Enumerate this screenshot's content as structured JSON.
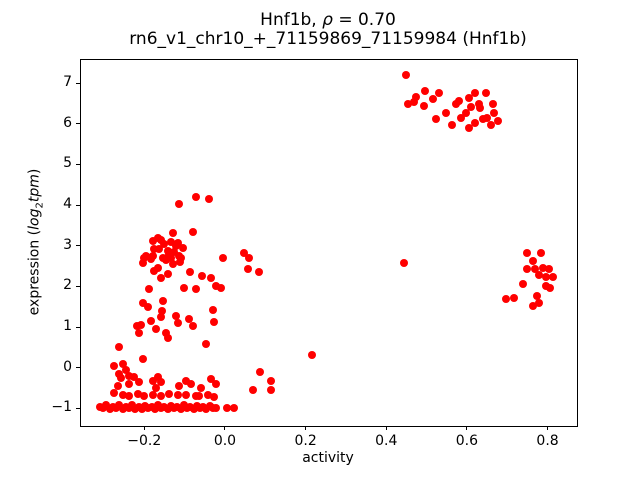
{
  "title": {
    "line1_prefix": "Hnf1b, ",
    "line1_rho": "ρ",
    "line1_suffix": " = 0.70",
    "line2": "rn6_v1_chr10_+_71159869_71159984 (Hnf1b)"
  },
  "chart_data": {
    "type": "scatter",
    "title_line1": "Hnf1b, ρ = 0.70",
    "title_line2": "rn6_v1_chr10_+_71159869_71159984 (Hnf1b)",
    "xlabel": "activity",
    "ylabel_parts": {
      "prefix": "expression (",
      "log": "log",
      "sub": "2",
      "tpm": "tpm",
      "suffix": ")"
    },
    "marker_color": "#ff0000",
    "marker_px": 8,
    "axes_color": "#000000",
    "background_color": "#ffffff",
    "grid": false,
    "legend": "none",
    "xlim": [
      -0.357,
      0.873
    ],
    "ylim": [
      -1.435,
      7.57
    ],
    "xticks": [
      -0.2,
      0.0,
      0.2,
      0.4,
      0.6,
      0.8
    ],
    "xtick_labels": [
      "−0.2",
      "0.0",
      "0.2",
      "0.4",
      "0.6",
      "0.8"
    ],
    "yticks": [
      -1,
      0,
      1,
      2,
      3,
      4,
      5,
      6,
      7
    ],
    "ytick_labels": [
      "−1",
      "0",
      "1",
      "2",
      "3",
      "4",
      "5",
      "6",
      "7"
    ],
    "points": [
      [
        0.449,
        7.2
      ],
      [
        0.474,
        6.66
      ],
      [
        0.496,
        6.8
      ],
      [
        0.515,
        6.6
      ],
      [
        0.531,
        6.76
      ],
      [
        0.454,
        6.48
      ],
      [
        0.469,
        6.54
      ],
      [
        0.494,
        6.43
      ],
      [
        0.523,
        6.11
      ],
      [
        0.548,
        6.27
      ],
      [
        0.564,
        5.98
      ],
      [
        0.573,
        6.48
      ],
      [
        0.581,
        6.56
      ],
      [
        0.585,
        6.15
      ],
      [
        0.597,
        6.27
      ],
      [
        0.606,
        6.64
      ],
      [
        0.61,
        6.41
      ],
      [
        0.606,
        5.9
      ],
      [
        0.62,
        6.02
      ],
      [
        0.62,
        6.76
      ],
      [
        0.633,
        6.39
      ],
      [
        0.639,
        6.11
      ],
      [
        0.647,
        6.76
      ],
      [
        0.651,
        6.15
      ],
      [
        0.659,
        5.98
      ],
      [
        0.668,
        6.27
      ],
      [
        0.63,
        6.48
      ],
      [
        0.664,
        6.48
      ],
      [
        0.676,
        6.07
      ],
      [
        0.75,
        2.83
      ],
      [
        0.783,
        2.82
      ],
      [
        0.765,
        2.63
      ],
      [
        0.75,
        2.42
      ],
      [
        0.77,
        2.42
      ],
      [
        0.788,
        2.46
      ],
      [
        0.804,
        2.42
      ],
      [
        0.779,
        2.27
      ],
      [
        0.797,
        2.22
      ],
      [
        0.814,
        2.22
      ],
      [
        0.738,
        2.05
      ],
      [
        0.796,
        2.01
      ],
      [
        0.806,
        1.97
      ],
      [
        0.717,
        1.72
      ],
      [
        0.697,
        1.69
      ],
      [
        0.775,
        1.77
      ],
      [
        0.779,
        1.6
      ],
      [
        0.763,
        1.52
      ],
      [
        0.444,
        2.57
      ],
      [
        0.217,
        0.31
      ],
      [
        -0.115,
        4.02
      ],
      [
        -0.072,
        4.21
      ],
      [
        -0.04,
        4.16
      ],
      [
        -0.13,
        3.32
      ],
      [
        -0.08,
        3.34
      ],
      [
        -0.167,
        3.2
      ],
      [
        -0.179,
        3.12
      ],
      [
        -0.159,
        3.14
      ],
      [
        -0.134,
        3.09
      ],
      [
        -0.116,
        3.06
      ],
      [
        -0.15,
        3.04
      ],
      [
        -0.121,
        2.99
      ],
      [
        -0.105,
        2.95
      ],
      [
        -0.175,
        2.91
      ],
      [
        -0.163,
        2.91
      ],
      [
        -0.142,
        2.87
      ],
      [
        -0.126,
        2.85
      ],
      [
        -0.196,
        2.75
      ],
      [
        -0.179,
        2.75
      ],
      [
        -0.138,
        2.79
      ],
      [
        -0.113,
        2.75
      ],
      [
        -0.2,
        2.71
      ],
      [
        -0.154,
        2.71
      ],
      [
        -0.134,
        2.71
      ],
      [
        -0.109,
        2.71
      ],
      [
        -0.204,
        2.58
      ],
      [
        -0.183,
        2.67
      ],
      [
        -0.146,
        2.65
      ],
      [
        -0.006,
        2.69
      ],
      [
        -0.175,
        2.39
      ],
      [
        -0.167,
        2.46
      ],
      [
        -0.142,
        2.31
      ],
      [
        -0.128,
        2.55
      ],
      [
        -0.112,
        2.61
      ],
      [
        -0.086,
        2.36
      ],
      [
        -0.057,
        2.25
      ],
      [
        -0.035,
        2.21
      ],
      [
        -0.159,
        2.21
      ],
      [
        0.048,
        2.83
      ],
      [
        0.06,
        2.71
      ],
      [
        0.056,
        2.43
      ],
      [
        0.085,
        2.35
      ],
      [
        -0.101,
        1.97
      ],
      [
        -0.072,
        1.93
      ],
      [
        -0.188,
        1.93
      ],
      [
        -0.022,
        2.01
      ],
      [
        -0.01,
        1.97
      ],
      [
        -0.204,
        1.6
      ],
      [
        -0.154,
        1.65
      ],
      [
        -0.157,
        1.4
      ],
      [
        -0.192,
        1.49
      ],
      [
        -0.159,
        1.24
      ],
      [
        -0.121,
        1.28
      ],
      [
        -0.088,
        1.2
      ],
      [
        -0.03,
        1.41
      ],
      [
        -0.026,
        1.12
      ],
      [
        -0.208,
        1.04
      ],
      [
        -0.217,
        1.03
      ],
      [
        -0.117,
        1.11
      ],
      [
        -0.08,
        1.03
      ],
      [
        -0.183,
        1.15
      ],
      [
        -0.171,
        0.95
      ],
      [
        -0.146,
        0.86
      ],
      [
        -0.212,
        0.86
      ],
      [
        -0.142,
        0.74
      ],
      [
        -0.047,
        0.58
      ],
      [
        -0.262,
        0.51
      ],
      [
        -0.204,
        0.21
      ],
      [
        -0.274,
        0.05
      ],
      [
        -0.254,
        0.09
      ],
      [
        -0.245,
        -0.06
      ],
      [
        -0.264,
        -0.16
      ],
      [
        -0.237,
        -0.2
      ],
      [
        -0.258,
        -0.26
      ],
      [
        -0.225,
        -0.24
      ],
      [
        -0.212,
        -0.36
      ],
      [
        -0.237,
        -0.4
      ],
      [
        -0.266,
        -0.44
      ],
      [
        -0.179,
        -0.32
      ],
      [
        -0.167,
        -0.24
      ],
      [
        -0.159,
        -0.36
      ],
      [
        -0.171,
        -0.49
      ],
      [
        -0.113,
        -0.44
      ],
      [
        -0.097,
        -0.32
      ],
      [
        -0.084,
        -0.4
      ],
      [
        -0.035,
        -0.28
      ],
      [
        -0.022,
        -0.4
      ],
      [
        -0.06,
        -0.49
      ],
      [
        0.088,
        -0.11
      ],
      [
        0.069,
        -0.56
      ],
      [
        0.114,
        -0.34
      ],
      [
        0.114,
        -0.56
      ],
      [
        -0.275,
        -0.62
      ],
      [
        -0.253,
        -0.66
      ],
      [
        -0.238,
        -0.7
      ],
      [
        -0.216,
        -0.64
      ],
      [
        -0.201,
        -0.7
      ],
      [
        -0.179,
        -0.66
      ],
      [
        -0.159,
        -0.7
      ],
      [
        -0.139,
        -0.64
      ],
      [
        -0.117,
        -0.68
      ],
      [
        -0.097,
        -0.66
      ],
      [
        -0.072,
        -0.7
      ],
      [
        -0.065,
        -0.7
      ],
      [
        -0.042,
        -0.66
      ],
      [
        -0.027,
        -0.72
      ],
      [
        -0.31,
        -0.96
      ],
      [
        -0.302,
        -1.0
      ],
      [
        -0.294,
        -0.92
      ],
      [
        -0.286,
        -1.02
      ],
      [
        -0.278,
        -0.97
      ],
      [
        -0.27,
        -1.0
      ],
      [
        -0.262,
        -0.93
      ],
      [
        -0.254,
        -1.02
      ],
      [
        -0.246,
        -0.97
      ],
      [
        -0.238,
        -1.0
      ],
      [
        -0.23,
        -0.92
      ],
      [
        -0.222,
        -1.01
      ],
      [
        -0.214,
        -0.96
      ],
      [
        -0.206,
        -1.02
      ],
      [
        -0.198,
        -0.94
      ],
      [
        -0.19,
        -1.0
      ],
      [
        -0.182,
        -0.97
      ],
      [
        -0.174,
        -1.02
      ],
      [
        -0.166,
        -0.93
      ],
      [
        -0.158,
        -1.0
      ],
      [
        -0.15,
        -0.96
      ],
      [
        -0.142,
        -1.02
      ],
      [
        -0.134,
        -0.94
      ],
      [
        -0.126,
        -1.0
      ],
      [
        -0.118,
        -0.97
      ],
      [
        -0.11,
        -1.02
      ],
      [
        -0.102,
        -0.93
      ],
      [
        -0.094,
        -1.0
      ],
      [
        -0.086,
        -0.96
      ],
      [
        -0.078,
        -1.02
      ],
      [
        -0.07,
        -0.95
      ],
      [
        -0.062,
        -1.0
      ],
      [
        -0.054,
        -0.97
      ],
      [
        -0.046,
        -1.02
      ],
      [
        -0.038,
        -0.94
      ],
      [
        -0.03,
        -1.0
      ],
      [
        -0.022,
        -0.98
      ],
      [
        0.005,
        -1.0
      ],
      [
        0.022,
        -1.0
      ]
    ]
  }
}
